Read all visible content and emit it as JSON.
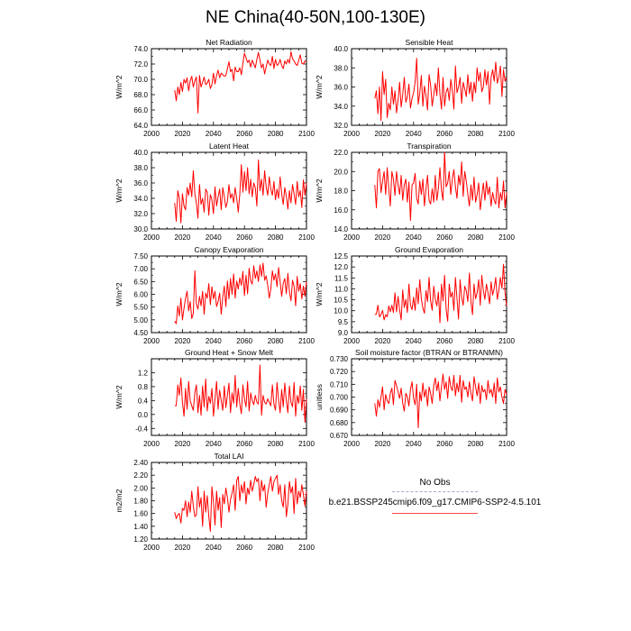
{
  "page": {
    "title": "NE China(40-50N,100-130E)"
  },
  "legend": {
    "obs_label": "No Obs",
    "obs_color": "#9999cc",
    "model_label": "b.e21.BSSP245cmip6.f09_g17.CMIP6-SSP2-4.5.101",
    "model_color": "#ff0000"
  },
  "chart_data": [
    {
      "id": "net-radiation",
      "type": "line",
      "title": "Net Radiation",
      "ylabel": "W/m^2",
      "xlim": [
        2000,
        2100
      ],
      "ylim": [
        64,
        74
      ],
      "xticks": [
        "2000",
        "2020",
        "2040",
        "2060",
        "2080",
        "2100"
      ],
      "yticks": [
        "64.0",
        "66.0",
        "68.0",
        "70.0",
        "72.0",
        "74.0"
      ],
      "start_year": 2015,
      "values": [
        68.6,
        67.2,
        69.0,
        68.0,
        69.6,
        68.4,
        70.0,
        69.5,
        70.2,
        68.5,
        69.8,
        70.4,
        69.0,
        69.8,
        70.3,
        65.6,
        70.5,
        69.0,
        69.6,
        70.3,
        69.3,
        69.5,
        70.0,
        68.8,
        69.3,
        70.8,
        69.4,
        70.5,
        71.2,
        70.2,
        70.8,
        70.6,
        70.4,
        70.5,
        71.4,
        72.3,
        71.0,
        71.3,
        69.8,
        71.6,
        71.0,
        71.0,
        71.5,
        70.6,
        72.1,
        73.4,
        72.8,
        72.2,
        72.5,
        71.6,
        72.5,
        72.0,
        71.5,
        72.6,
        73.5,
        72.5,
        71.5,
        72.0,
        70.7,
        71.6,
        72.5,
        72.0,
        71.8,
        73.0,
        71.4,
        72.6,
        71.8,
        72.0,
        72.6,
        71.8,
        71.4,
        72.4,
        72.0,
        72.6,
        72.1,
        73.6,
        72.7,
        72.4,
        72.0,
        71.8,
        72.5,
        73.2,
        72.1,
        72.0,
        72.4,
        72.3
      ]
    },
    {
      "id": "sensible-heat",
      "type": "line",
      "title": "Sensible Heat",
      "ylabel": "W/m^2",
      "xlim": [
        2000,
        2100
      ],
      "ylim": [
        32,
        40
      ],
      "xticks": [
        "2000",
        "2020",
        "2040",
        "2060",
        "2080",
        "2100"
      ],
      "yticks": [
        "32.0",
        "34.0",
        "36.0",
        "38.0",
        "40.0"
      ],
      "start_year": 2015,
      "values": [
        34.8,
        35.6,
        33.2,
        36.0,
        32.5,
        37.6,
        35.2,
        36.8,
        32.8,
        34.3,
        33.6,
        36.0,
        34.2,
        35.6,
        33.3,
        34.6,
        36.5,
        33.9,
        35.2,
        37.0,
        34.4,
        35.0,
        36.3,
        33.8,
        34.8,
        35.4,
        36.5,
        39.0,
        34.2,
        35.4,
        37.2,
        34.0,
        36.1,
        35.1,
        33.6,
        37.3,
        36.2,
        34.0,
        35.2,
        36.4,
        35.1,
        38.0,
        35.3,
        33.7,
        37.0,
        34.0,
        35.5,
        35.9,
        34.6,
        36.8,
        35.6,
        33.7,
        38.2,
        35.4,
        36.0,
        37.0,
        34.3,
        36.5,
        35.8,
        35.0,
        37.3,
        35.3,
        36.5,
        34.5,
        36.5,
        35.4,
        38.0,
        36.6,
        37.5,
        35.5,
        36.0,
        37.8,
        36.2,
        37.6,
        34.2,
        37.0,
        37.8,
        36.6,
        38.6,
        36.4,
        37.0,
        38.2,
        35.0,
        37.8,
        36.6,
        37.0
      ]
    },
    {
      "id": "latent-heat",
      "type": "line",
      "title": "Latent Heat",
      "ylabel": "W/m^2",
      "xlim": [
        2000,
        2100
      ],
      "ylim": [
        30,
        40
      ],
      "xticks": [
        "2000",
        "2020",
        "2040",
        "2060",
        "2080",
        "2100"
      ],
      "yticks": [
        "30.0",
        "32.0",
        "34.0",
        "36.0",
        "38.0",
        "40.0"
      ],
      "start_year": 2015,
      "values": [
        33.4,
        31.0,
        35.0,
        34.0,
        30.8,
        34.6,
        33.0,
        32.5,
        35.4,
        34.4,
        36.0,
        34.2,
        37.6,
        34.6,
        33.4,
        31.4,
        35.8,
        33.2,
        34.0,
        32.2,
        35.2,
        34.8,
        31.8,
        34.5,
        33.8,
        32.0,
        35.5,
        33.0,
        34.2,
        35.2,
        32.5,
        35.4,
        34.2,
        32.8,
        33.6,
        35.8,
        34.0,
        34.6,
        33.4,
        35.4,
        34.0,
        32.2,
        34.6,
        38.4,
        34.8,
        37.5,
        35.0,
        38.0,
        34.6,
        36.5,
        34.2,
        36.0,
        35.4,
        33.0,
        39.0,
        35.0,
        36.5,
        34.4,
        37.6,
        35.5,
        34.4,
        36.8,
        35.2,
        34.4,
        36.2,
        33.8,
        35.2,
        34.0,
        36.8,
        34.6,
        33.2,
        35.4,
        34.3,
        32.6,
        35.0,
        33.4,
        35.8,
        34.6,
        33.2,
        36.2,
        34.2,
        35.0,
        32.8,
        36.4,
        34.4,
        36.0
      ]
    },
    {
      "id": "transpiration",
      "type": "line",
      "title": "Transpiration",
      "ylabel": "W/m^2",
      "xlim": [
        2000,
        2100
      ],
      "ylim": [
        14,
        22
      ],
      "xticks": [
        "2000",
        "2020",
        "2040",
        "2060",
        "2080",
        "2100"
      ],
      "yticks": [
        "14.0",
        "16.0",
        "18.0",
        "20.0",
        "22.0"
      ],
      "start_year": 2015,
      "values": [
        18.6,
        16.2,
        20.0,
        20.3,
        17.8,
        19.0,
        20.0,
        17.6,
        20.4,
        18.2,
        16.4,
        20.0,
        19.2,
        17.5,
        20.0,
        18.6,
        17.6,
        19.6,
        17.0,
        18.6,
        19.2,
        16.8,
        18.9,
        14.9,
        18.6,
        18.8,
        19.8,
        17.2,
        16.6,
        19.0,
        17.6,
        19.2,
        16.4,
        18.2,
        19.6,
        17.0,
        16.6,
        18.2,
        16.8,
        19.6,
        17.0,
        18.2,
        20.4,
        18.0,
        17.0,
        22.0,
        18.4,
        18.8,
        20.0,
        17.6,
        19.2,
        20.2,
        18.4,
        17.2,
        19.6,
        18.6,
        21.0,
        17.4,
        20.0,
        19.0,
        17.6,
        16.4,
        18.6,
        17.0,
        19.4,
        16.8,
        17.6,
        18.8,
        16.0,
        17.4,
        18.8,
        17.0,
        19.0,
        17.6,
        18.4,
        16.4,
        17.8,
        17.0,
        16.6,
        19.4,
        16.2,
        17.8,
        17.0,
        19.0,
        16.2,
        17.8
      ]
    },
    {
      "id": "canopy-evaporation",
      "type": "line",
      "title": "Canopy Evaporation",
      "ylabel": "W/m^2",
      "xlim": [
        2000,
        2100
      ],
      "ylim": [
        4.5,
        7.5
      ],
      "xticks": [
        "2000",
        "2020",
        "2040",
        "2060",
        "2080",
        "2100"
      ],
      "yticks": [
        "4.50",
        "5.00",
        "5.50",
        "6.00",
        "6.50",
        "7.00",
        "7.50"
      ],
      "start_year": 2015,
      "values": [
        4.95,
        4.85,
        5.55,
        5.15,
        5.85,
        5.0,
        5.45,
        5.85,
        6.12,
        5.35,
        5.72,
        5.05,
        5.25,
        6.92,
        5.62,
        5.42,
        5.92,
        5.55,
        6.12,
        5.22,
        6.05,
        5.85,
        6.42,
        5.6,
        6.3,
        5.82,
        6.12,
        5.52,
        5.72,
        6.05,
        5.22,
        5.9,
        6.32,
        5.52,
        6.52,
        5.82,
        6.62,
        6.0,
        6.8,
        5.85,
        6.52,
        6.2,
        6.65,
        6.35,
        6.9,
        5.95,
        6.75,
        6.02,
        7.02,
        6.52,
        6.4,
        7.12,
        6.62,
        6.92,
        6.5,
        7.15,
        6.7,
        7.22,
        6.55,
        6.72,
        6.35,
        5.85,
        6.22,
        6.92,
        6.55,
        6.8,
        6.3,
        7.05,
        6.5,
        5.92,
        6.42,
        6.62,
        6.02,
        6.82,
        6.1,
        5.75,
        6.55,
        6.32,
        5.55,
        6.7,
        6.12,
        6.42,
        5.82,
        6.32,
        5.92,
        6.5
      ]
    },
    {
      "id": "ground-evaporation",
      "type": "line",
      "title": "Ground Evaporation",
      "ylabel": "W/m^2",
      "xlim": [
        2000,
        2100
      ],
      "ylim": [
        9,
        12.5
      ],
      "xticks": [
        "2000",
        "2020",
        "2040",
        "2060",
        "2080",
        "2100"
      ],
      "yticks": [
        "9.0",
        "9.5",
        "10.0",
        "10.5",
        "11.0",
        "11.5",
        "12.0",
        "12.5"
      ],
      "start_year": 2015,
      "values": [
        9.82,
        9.85,
        10.25,
        9.72,
        9.82,
        10.02,
        9.58,
        9.82,
        9.72,
        10.22,
        9.95,
        10.25,
        9.92,
        10.82,
        9.95,
        10.65,
        10.05,
        9.58,
        10.95,
        10.15,
        10.52,
        9.92,
        11.22,
        10.25,
        10.05,
        10.62,
        10.02,
        11.05,
        10.32,
        11.42,
        10.55,
        10.12,
        9.88,
        10.92,
        10.42,
        11.52,
        10.45,
        10.02,
        11.12,
        10.52,
        10.22,
        10.85,
        9.45,
        11.22,
        10.45,
        11.62,
        10.05,
        9.52,
        11.22,
        10.62,
        10.85,
        10.02,
        11.52,
        10.55,
        9.62,
        11.42,
        10.62,
        10.25,
        11.12,
        10.92,
        10.42,
        11.72,
        10.42,
        9.82,
        11.22,
        10.55,
        10.82,
        11.42,
        10.25,
        11.62,
        10.92,
        10.52,
        11.22,
        10.82,
        10.32,
        11.32,
        10.72,
        11.02,
        11.52,
        10.52,
        10.92,
        11.52,
        11.02,
        12.12,
        10.82,
        10.22
      ]
    },
    {
      "id": "ground-heat-snow-melt",
      "type": "line",
      "title": "Ground Heat + Snow Melt",
      "ylabel": "W/m^2",
      "xlim": [
        2000,
        2100
      ],
      "ylim": [
        -0.6,
        1.6
      ],
      "xticks": [
        "2000",
        "2020",
        "2040",
        "2060",
        "2080",
        "2100"
      ],
      "yticks": [
        "-0.4",
        "0.0",
        "0.4",
        "0.8",
        "1.2"
      ],
      "start_year": 2015,
      "values": [
        0.25,
        0.25,
        0.85,
        0.55,
        1.05,
        0.35,
        -0.05,
        0.75,
        0.15,
        0.95,
        0.4,
        0.25,
        0.12,
        0.62,
        0.85,
        0.05,
        0.55,
        -0.02,
        0.82,
        0.22,
        1.02,
        0.1,
        0.52,
        0.32,
        0.75,
        -0.05,
        0.45,
        0.95,
        0.15,
        0.7,
        0.4,
        0.12,
        0.82,
        0.2,
        0.55,
        0.9,
        0.05,
        0.62,
        0.32,
        1.12,
        0.22,
        0.75,
        0.3,
        0.02,
        0.85,
        0.45,
        0.22,
        0.95,
        0.1,
        0.62,
        0.4,
        0.28,
        0.55,
        0.35,
        0.3,
        1.42,
        -0.02,
        0.55,
        0.35,
        0.3,
        0.45,
        0.35,
        0.25,
        0.85,
        0.3,
        0.12,
        0.92,
        0.42,
        0.05,
        0.72,
        0.22,
        0.9,
        0.4,
        0.05,
        0.82,
        0.35,
        0.22,
        0.92,
        -0.05,
        0.55,
        0.32,
        0.82,
        0.12,
        0.72,
        -0.22,
        0.45
      ]
    },
    {
      "id": "soil-moisture-factor",
      "type": "line",
      "title": "Soil moisture factor (BTRAN or BTRANMN)",
      "ylabel": "unitless",
      "xlim": [
        2000,
        2100
      ],
      "ylim": [
        0.67,
        0.73
      ],
      "xticks": [
        "2000",
        "2020",
        "2040",
        "2060",
        "2080",
        "2100"
      ],
      "yticks": [
        "0.670",
        "0.680",
        "0.690",
        "0.700",
        "0.710",
        "0.720",
        "0.730"
      ],
      "start_year": 2015,
      "values": [
        0.695,
        0.685,
        0.698,
        0.692,
        0.7,
        0.708,
        0.69,
        0.702,
        0.697,
        0.695,
        0.703,
        0.707,
        0.694,
        0.713,
        0.709,
        0.704,
        0.699,
        0.707,
        0.695,
        0.689,
        0.703,
        0.7,
        0.693,
        0.706,
        0.712,
        0.699,
        0.694,
        0.71,
        0.676,
        0.704,
        0.697,
        0.711,
        0.7,
        0.706,
        0.693,
        0.708,
        0.703,
        0.695,
        0.709,
        0.715,
        0.705,
        0.712,
        0.697,
        0.708,
        0.718,
        0.706,
        0.712,
        0.699,
        0.716,
        0.708,
        0.705,
        0.717,
        0.701,
        0.711,
        0.704,
        0.717,
        0.696,
        0.713,
        0.706,
        0.708,
        0.7,
        0.712,
        0.703,
        0.697,
        0.716,
        0.708,
        0.701,
        0.711,
        0.695,
        0.709,
        0.704,
        0.706,
        0.698,
        0.713,
        0.703,
        0.706,
        0.7,
        0.711,
        0.695,
        0.715,
        0.704,
        0.708,
        0.7,
        0.695,
        0.706,
        0.702
      ]
    },
    {
      "id": "total-lai",
      "type": "line",
      "title": "Total LAI",
      "ylabel": "m2/m2",
      "xlim": [
        2000,
        2100
      ],
      "ylim": [
        1.2,
        2.4
      ],
      "xticks": [
        "2000",
        "2020",
        "2040",
        "2060",
        "2080",
        "2100"
      ],
      "yticks": [
        "1.20",
        "1.40",
        "1.60",
        "1.80",
        "2.00",
        "2.20",
        "2.40"
      ],
      "start_year": 2015,
      "values": [
        1.62,
        1.52,
        1.58,
        1.6,
        1.45,
        1.68,
        1.65,
        1.8,
        1.55,
        1.78,
        1.62,
        1.95,
        1.72,
        1.55,
        1.58,
        2.02,
        1.7,
        1.85,
        1.4,
        1.95,
        1.62,
        1.88,
        1.55,
        1.32,
        2.02,
        1.78,
        1.42,
        1.95,
        1.65,
        1.85,
        1.38,
        1.9,
        1.75,
        2.0,
        1.85,
        1.62,
        1.82,
        1.92,
        2.05,
        1.65,
        2.12,
        2.18,
        1.8,
        2.05,
        1.92,
        2.1,
        1.75,
        2.0,
        1.9,
        2.12,
        1.95,
        2.05,
        2.18,
        2.1,
        2.15,
        1.8,
        2.12,
        1.95,
        2.05,
        1.7,
        1.92,
        2.05,
        2.18,
        1.95,
        2.1,
        2.15,
        2.2,
        1.9,
        2.05,
        1.8,
        1.7,
        2.05,
        1.55,
        1.75,
        2.1,
        1.92,
        2.02,
        1.6,
        2.15,
        1.75,
        1.95,
        1.85,
        2.05,
        1.9,
        1.72,
        1.95
      ]
    }
  ]
}
